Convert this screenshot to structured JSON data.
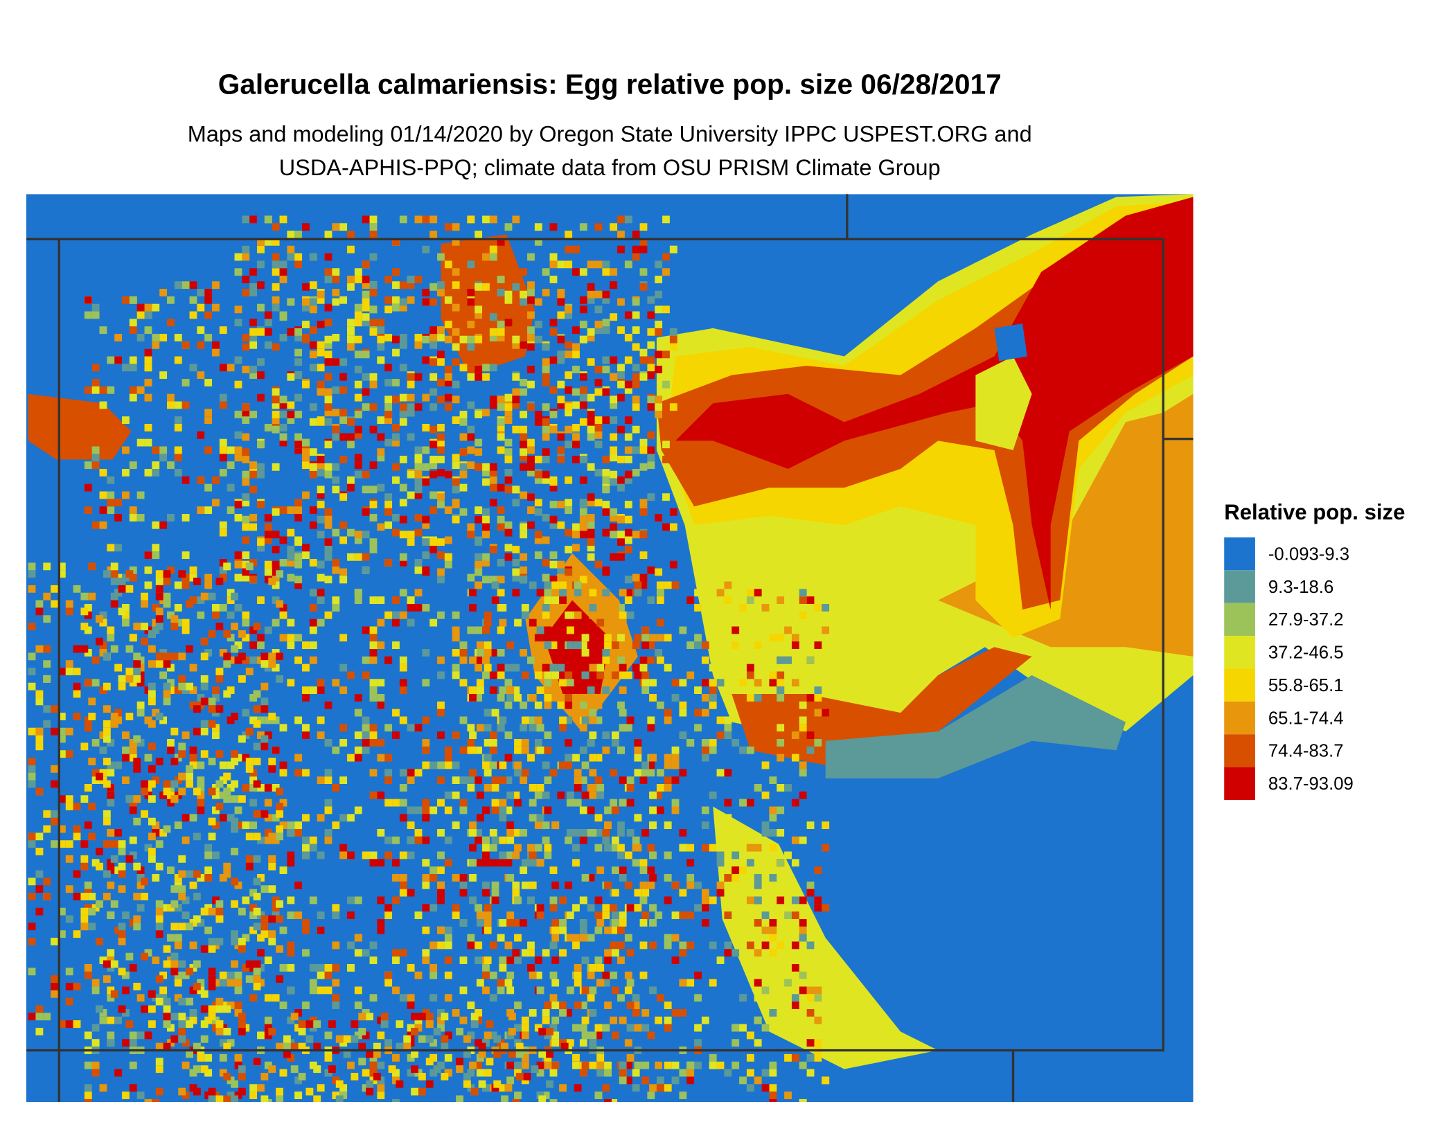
{
  "title": "Galerucella calmariensis: Egg relative pop. size 06/28/2017",
  "subtitle": [
    "Maps and modeling 01/14/2020 by Oregon State University IPPC USPEST.ORG and",
    "USDA-APHIS-PPQ; climate data from OSU PRISM Climate Group"
  ],
  "legend": {
    "title": "Relative pop. size",
    "items": [
      {
        "label": "-0.093-9.3",
        "color": "#1c74cf"
      },
      {
        "label": "9.3-18.6",
        "color": "#5b9a99"
      },
      {
        "label": "27.9-37.2",
        "color": "#9cc25a"
      },
      {
        "label": "37.2-46.5",
        "color": "#dfe621"
      },
      {
        "label": "55.8-65.1",
        "color": "#f6d600"
      },
      {
        "label": "65.1-74.4",
        "color": "#e8960b"
      },
      {
        "label": "74.4-83.7",
        "color": "#d84f00"
      },
      {
        "label": "83.7-93.09",
        "color": "#d10000"
      }
    ]
  }
}
